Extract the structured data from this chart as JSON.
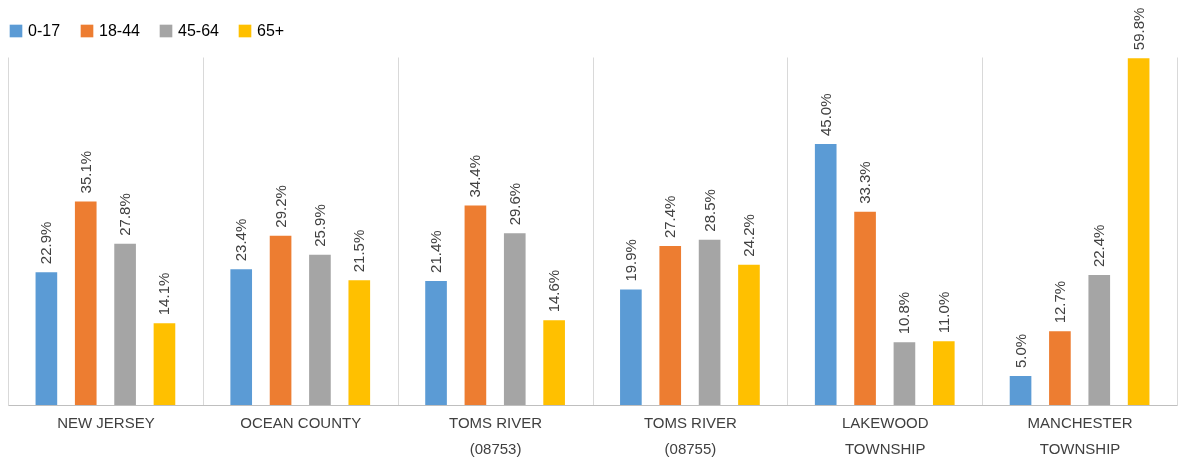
{
  "chart_data": {
    "type": "bar",
    "categories": [
      "NEW JERSEY",
      "OCEAN COUNTY",
      "TOMS RIVER (08753)",
      "TOMS RIVER (08755)",
      "LAKEWOOD TOWNSHIP",
      "MANCHESTER TOWNSHIP"
    ],
    "series": [
      {
        "name": "0-17",
        "color": "#5b9bd5",
        "values": [
          22.9,
          23.4,
          21.4,
          19.9,
          45.0,
          5.0
        ],
        "value_labels": [
          "22.9%",
          "23.4%",
          "21.4%",
          "19.9%",
          "45.0%",
          "5.0%"
        ]
      },
      {
        "name": "18-44",
        "color": "#ed7d31",
        "values": [
          35.1,
          29.2,
          34.4,
          27.4,
          33.3,
          12.7
        ],
        "value_labels": [
          "35.1%",
          "29.2%",
          "34.4%",
          "27.4%",
          "33.3%",
          "12.7%"
        ]
      },
      {
        "name": "45-64",
        "color": "#a5a5a5",
        "values": [
          27.8,
          25.9,
          29.6,
          28.5,
          10.8,
          22.4
        ],
        "value_labels": [
          "27.8%",
          "25.9%",
          "29.6%",
          "28.5%",
          "10.8%",
          "22.4%"
        ]
      },
      {
        "name": "65+",
        "color": "#ffc000",
        "values": [
          14.1,
          21.5,
          14.6,
          24.2,
          11.0,
          59.8
        ],
        "value_labels": [
          "14.1%",
          "21.5%",
          "14.6%",
          "24.2%",
          "11.0%",
          "59.8%"
        ]
      }
    ],
    "grid": "x",
    "legend": "top"
  }
}
